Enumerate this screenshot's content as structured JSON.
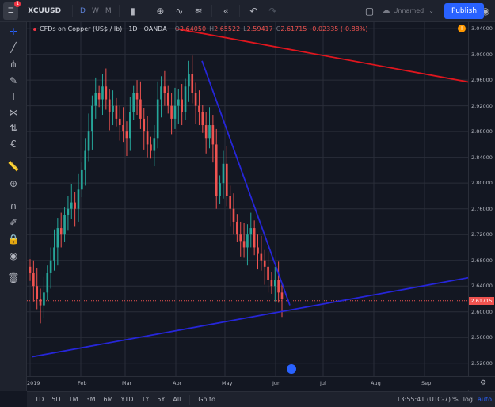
{
  "toolbar": {
    "logo_badge": "1",
    "symbol": "XCUUSD",
    "intervals": [
      "D",
      "W",
      "M"
    ],
    "layout_name": "Unnamed",
    "publish_label": "Publish",
    "icons": [
      "bars-icon",
      "add-indicator-icon",
      "compare-icon",
      "indicators-icon",
      "replay-icon",
      "undo-icon",
      "redo-icon",
      "fullscreen-icon",
      "cloud-icon",
      "settings-icon",
      "expand-icon",
      "camera-icon"
    ]
  },
  "legend": {
    "title": "CFDs on Copper (US$ / lb)",
    "interval": "1D",
    "source": "OANDA",
    "open_label": "O",
    "open": "2.64050",
    "high_label": "H",
    "high": "2.65522",
    "low_label": "L",
    "low": "2.59417",
    "close_label": "C",
    "close": "2.61715",
    "change": "-0.02335 (-0.88%)"
  },
  "left_tools": [
    "crosshair-icon",
    "trendline-icon",
    "pitchfork-icon",
    "brush-icon",
    "text-icon",
    "pattern-icon",
    "prediction-icon",
    "forecast-icon",
    "ruler-icon",
    "zoom-icon",
    "magnet-icon",
    "lock-drawing-icon",
    "lock-icon",
    "eye-icon",
    "trash-icon"
  ],
  "colors": {
    "up": "#26a69a",
    "down": "#ef5350",
    "blue_line": "#2626d9",
    "red_line": "#e0161e",
    "accent": "#2962ff"
  },
  "price_axis": {
    "ticks": [
      "3.04000",
      "3.00000",
      "2.96000",
      "2.92000",
      "2.88000",
      "2.84000",
      "2.80000",
      "2.76000",
      "2.72000",
      "2.68000",
      "2.64000",
      "2.60000",
      "2.56000",
      "2.52000"
    ],
    "last_price": "2.61715"
  },
  "time_axis": {
    "labels": [
      "2019",
      "Feb",
      "Mar",
      "Apr",
      "May",
      "Jun",
      "Jul",
      "Aug",
      "Sep"
    ]
  },
  "bottom_bar": {
    "ranges": [
      "1D",
      "5D",
      "1M",
      "3M",
      "6M",
      "YTD",
      "1Y",
      "5Y",
      "All"
    ],
    "goto_label": "Go to...",
    "clock": "13:55:41 (UTC-7)",
    "percent": "%",
    "log": "log",
    "auto": "auto"
  },
  "chart_data": {
    "type": "candlestick",
    "title": "CFDs on Copper (US$ / lb)",
    "x_labels": [
      "2019",
      "Feb",
      "Mar",
      "Apr",
      "May",
      "Jun",
      "Jul",
      "Aug",
      "Sep"
    ],
    "ylim": [
      2.5,
      3.05
    ],
    "grid": true,
    "closes": [
      2.66,
      2.64,
      2.62,
      2.61,
      2.63,
      2.66,
      2.68,
      2.7,
      2.73,
      2.72,
      2.75,
      2.76,
      2.77,
      2.76,
      2.79,
      2.82,
      2.85,
      2.88,
      2.92,
      2.94,
      2.93,
      2.95,
      2.93,
      2.91,
      2.92,
      2.9,
      2.89,
      2.88,
      2.87,
      2.91,
      2.94,
      2.93,
      2.9,
      2.88,
      2.86,
      2.85,
      2.87,
      2.93,
      2.95,
      2.94,
      2.92,
      2.9,
      2.92,
      2.93,
      2.91,
      2.95,
      2.97,
      2.94,
      2.92,
      2.91,
      2.89,
      2.87,
      2.89,
      2.86,
      2.78,
      2.8,
      2.83,
      2.78,
      2.76,
      2.74,
      2.72,
      2.71,
      2.7,
      2.72,
      2.73,
      2.7,
      2.69,
      2.68,
      2.67,
      2.65,
      2.64,
      2.65,
      2.63,
      2.62
    ],
    "lines": [
      {
        "color": "blue",
        "from": [
          "2019-01-02",
          2.53
        ],
        "to": [
          "2019-10-15",
          2.66
        ]
      },
      {
        "color": "blue",
        "from": [
          "2019-04-17",
          2.99
        ],
        "to": [
          "2019-06-10",
          2.61
        ]
      },
      {
        "color": "red",
        "from": [
          "2019-04-01",
          3.04
        ],
        "to": [
          "2019-10-15",
          2.95
        ]
      }
    ],
    "last_price": 2.61715
  }
}
